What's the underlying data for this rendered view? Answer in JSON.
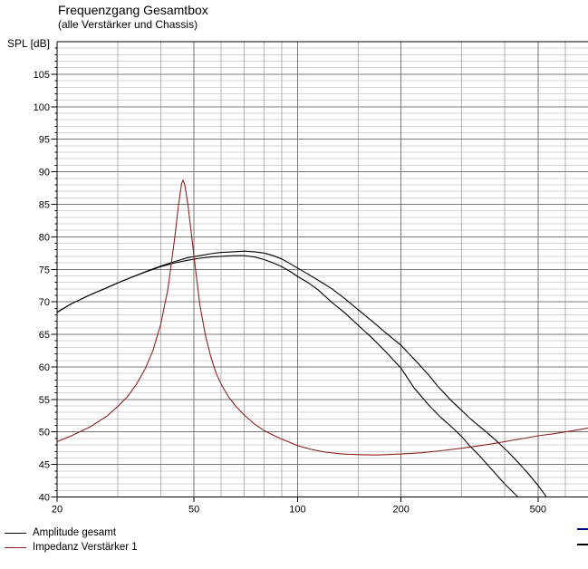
{
  "header": {
    "title": "Frequenzgang Gesamtbox",
    "subtitle": "(alle Verstärker und Chassis)"
  },
  "y_axis_label": "SPL [dB]",
  "legend": {
    "items": [
      {
        "label": "Amplitude gesamt",
        "color": "#000000"
      },
      {
        "label": "Impedanz Verstärker 1",
        "color": "#8b2323"
      }
    ]
  },
  "edge_marks": [
    {
      "color": "#000080",
      "y": 583
    },
    {
      "color": "#000000",
      "y": 600
    }
  ],
  "colors": {
    "amplitude": "#000000",
    "impedance": "#8b2323",
    "grid_major": "#787878",
    "grid_minor_h": "#d6d6d6",
    "grid_minor_v": "#b4b4b4",
    "frame": "#000000"
  },
  "chart_data": {
    "type": "line",
    "title": "Frequenzgang Gesamtbox",
    "subtitle": "(alle Verstärker und Chassis)",
    "xlabel": "",
    "ylabel": "SPL [dB]",
    "x_scale": "log",
    "xlim": [
      20,
      700
    ],
    "ylim": [
      40,
      110
    ],
    "grid": true,
    "legend_position": "bottom-left",
    "y_ticks_labeled": [
      105,
      100,
      95,
      90,
      85,
      80,
      75,
      70,
      65,
      60,
      55,
      50,
      45,
      40
    ],
    "y_tick_step_minor": 1,
    "x_ticks_labeled": [
      20,
      50,
      100,
      200,
      500
    ],
    "x_gridlines_major": [
      50,
      100,
      200,
      500
    ],
    "x_gridlines_minor": [
      30,
      40,
      60,
      70,
      80,
      90,
      150,
      300,
      400,
      600,
      700
    ],
    "series": [
      {
        "name": "Amplitude gesamt",
        "color": "#000000",
        "points": [
          [
            20,
            68.4
          ],
          [
            22,
            69.7
          ],
          [
            25,
            71.1
          ],
          [
            28,
            72.2
          ],
          [
            30,
            72.9
          ],
          [
            33,
            73.8
          ],
          [
            36,
            74.6
          ],
          [
            40,
            75.5
          ],
          [
            44,
            76.2
          ],
          [
            48,
            76.8
          ],
          [
            52,
            77.1
          ],
          [
            56,
            77.4
          ],
          [
            60,
            77.6
          ],
          [
            65,
            77.7
          ],
          [
            70,
            77.8
          ],
          [
            75,
            77.7
          ],
          [
            80,
            77.5
          ],
          [
            85,
            77.1
          ],
          [
            90,
            76.6
          ],
          [
            95,
            75.9
          ],
          [
            100,
            75.2
          ],
          [
            107,
            74.3
          ],
          [
            115,
            73.3
          ],
          [
            126,
            72.0
          ],
          [
            138,
            70.4
          ],
          [
            150,
            68.8
          ],
          [
            165,
            67.0
          ],
          [
            180,
            65.3
          ],
          [
            200,
            63.3
          ],
          [
            220,
            61.0
          ],
          [
            240,
            58.8
          ],
          [
            256,
            57.0
          ],
          [
            280,
            54.8
          ],
          [
            300,
            53.3
          ],
          [
            320,
            51.9
          ],
          [
            350,
            50.2
          ],
          [
            370,
            49.1
          ],
          [
            390,
            48.0
          ],
          [
            410,
            46.9
          ],
          [
            440,
            45.2
          ],
          [
            470,
            43.5
          ],
          [
            500,
            41.8
          ],
          [
            529,
            40.0
          ],
          [
            560,
            40.0
          ],
          [
            700,
            40.0
          ]
        ]
      },
      {
        "name": "Amplitude gesamt",
        "color": "#000000",
        "points": [
          [
            20,
            68.4
          ],
          [
            22,
            69.7
          ],
          [
            25,
            71.1
          ],
          [
            28,
            72.2
          ],
          [
            30,
            72.9
          ],
          [
            33,
            73.8
          ],
          [
            36,
            74.55
          ],
          [
            40,
            75.4
          ],
          [
            44,
            76.0
          ],
          [
            48,
            76.4
          ],
          [
            52,
            76.7
          ],
          [
            56,
            76.9
          ],
          [
            60,
            77.0
          ],
          [
            65,
            77.1
          ],
          [
            70,
            77.1
          ],
          [
            75,
            76.9
          ],
          [
            80,
            76.5
          ],
          [
            85,
            76.0
          ],
          [
            90,
            75.4
          ],
          [
            95,
            74.7
          ],
          [
            100,
            73.9
          ],
          [
            107,
            73.0
          ],
          [
            115,
            71.8
          ],
          [
            126,
            69.9
          ],
          [
            138,
            68.2
          ],
          [
            150,
            66.4
          ],
          [
            165,
            64.4
          ],
          [
            180,
            62.4
          ],
          [
            200,
            59.8
          ],
          [
            218,
            56.8
          ],
          [
            240,
            54.2
          ],
          [
            260,
            52.3
          ],
          [
            280,
            50.8
          ],
          [
            300,
            49.3
          ],
          [
            316,
            47.9
          ],
          [
            340,
            46.2
          ],
          [
            370,
            44.0
          ],
          [
            400,
            42.0
          ],
          [
            420,
            40.9
          ],
          [
            437,
            40.0
          ],
          [
            470,
            40.0
          ],
          [
            700,
            40.0
          ]
        ]
      },
      {
        "name": "Impedanz Verstärker 1",
        "color": "#8b2323",
        "points": [
          [
            20,
            48.5
          ],
          [
            22,
            49.4
          ],
          [
            25,
            50.8
          ],
          [
            28,
            52.5
          ],
          [
            30,
            53.9
          ],
          [
            32,
            55.4
          ],
          [
            34,
            57.3
          ],
          [
            36,
            59.6
          ],
          [
            38,
            62.5
          ],
          [
            40,
            66.5
          ],
          [
            42,
            72.0
          ],
          [
            44,
            80.0
          ],
          [
            45,
            84.5
          ],
          [
            46,
            88.2
          ],
          [
            46.5,
            88.7
          ],
          [
            47,
            88.0
          ],
          [
            48,
            85.0
          ],
          [
            49,
            81.0
          ],
          [
            50,
            77.0
          ],
          [
            52,
            69.5
          ],
          [
            54,
            64.8
          ],
          [
            56,
            61.5
          ],
          [
            58,
            59.0
          ],
          [
            60,
            57.3
          ],
          [
            63,
            55.4
          ],
          [
            66,
            54.0
          ],
          [
            70,
            52.6
          ],
          [
            75,
            51.2
          ],
          [
            80,
            50.2
          ],
          [
            85,
            49.5
          ],
          [
            90,
            48.9
          ],
          [
            95,
            48.4
          ],
          [
            100,
            47.9
          ],
          [
            110,
            47.3
          ],
          [
            120,
            46.9
          ],
          [
            135,
            46.6
          ],
          [
            150,
            46.5
          ],
          [
            170,
            46.45
          ],
          [
            200,
            46.6
          ],
          [
            230,
            46.8
          ],
          [
            260,
            47.1
          ],
          [
            300,
            47.5
          ],
          [
            340,
            47.9
          ],
          [
            380,
            48.3
          ],
          [
            420,
            48.7
          ],
          [
            460,
            49.05
          ],
          [
            500,
            49.4
          ],
          [
            550,
            49.7
          ],
          [
            600,
            50.0
          ],
          [
            650,
            50.3
          ],
          [
            700,
            50.6
          ]
        ]
      }
    ]
  }
}
